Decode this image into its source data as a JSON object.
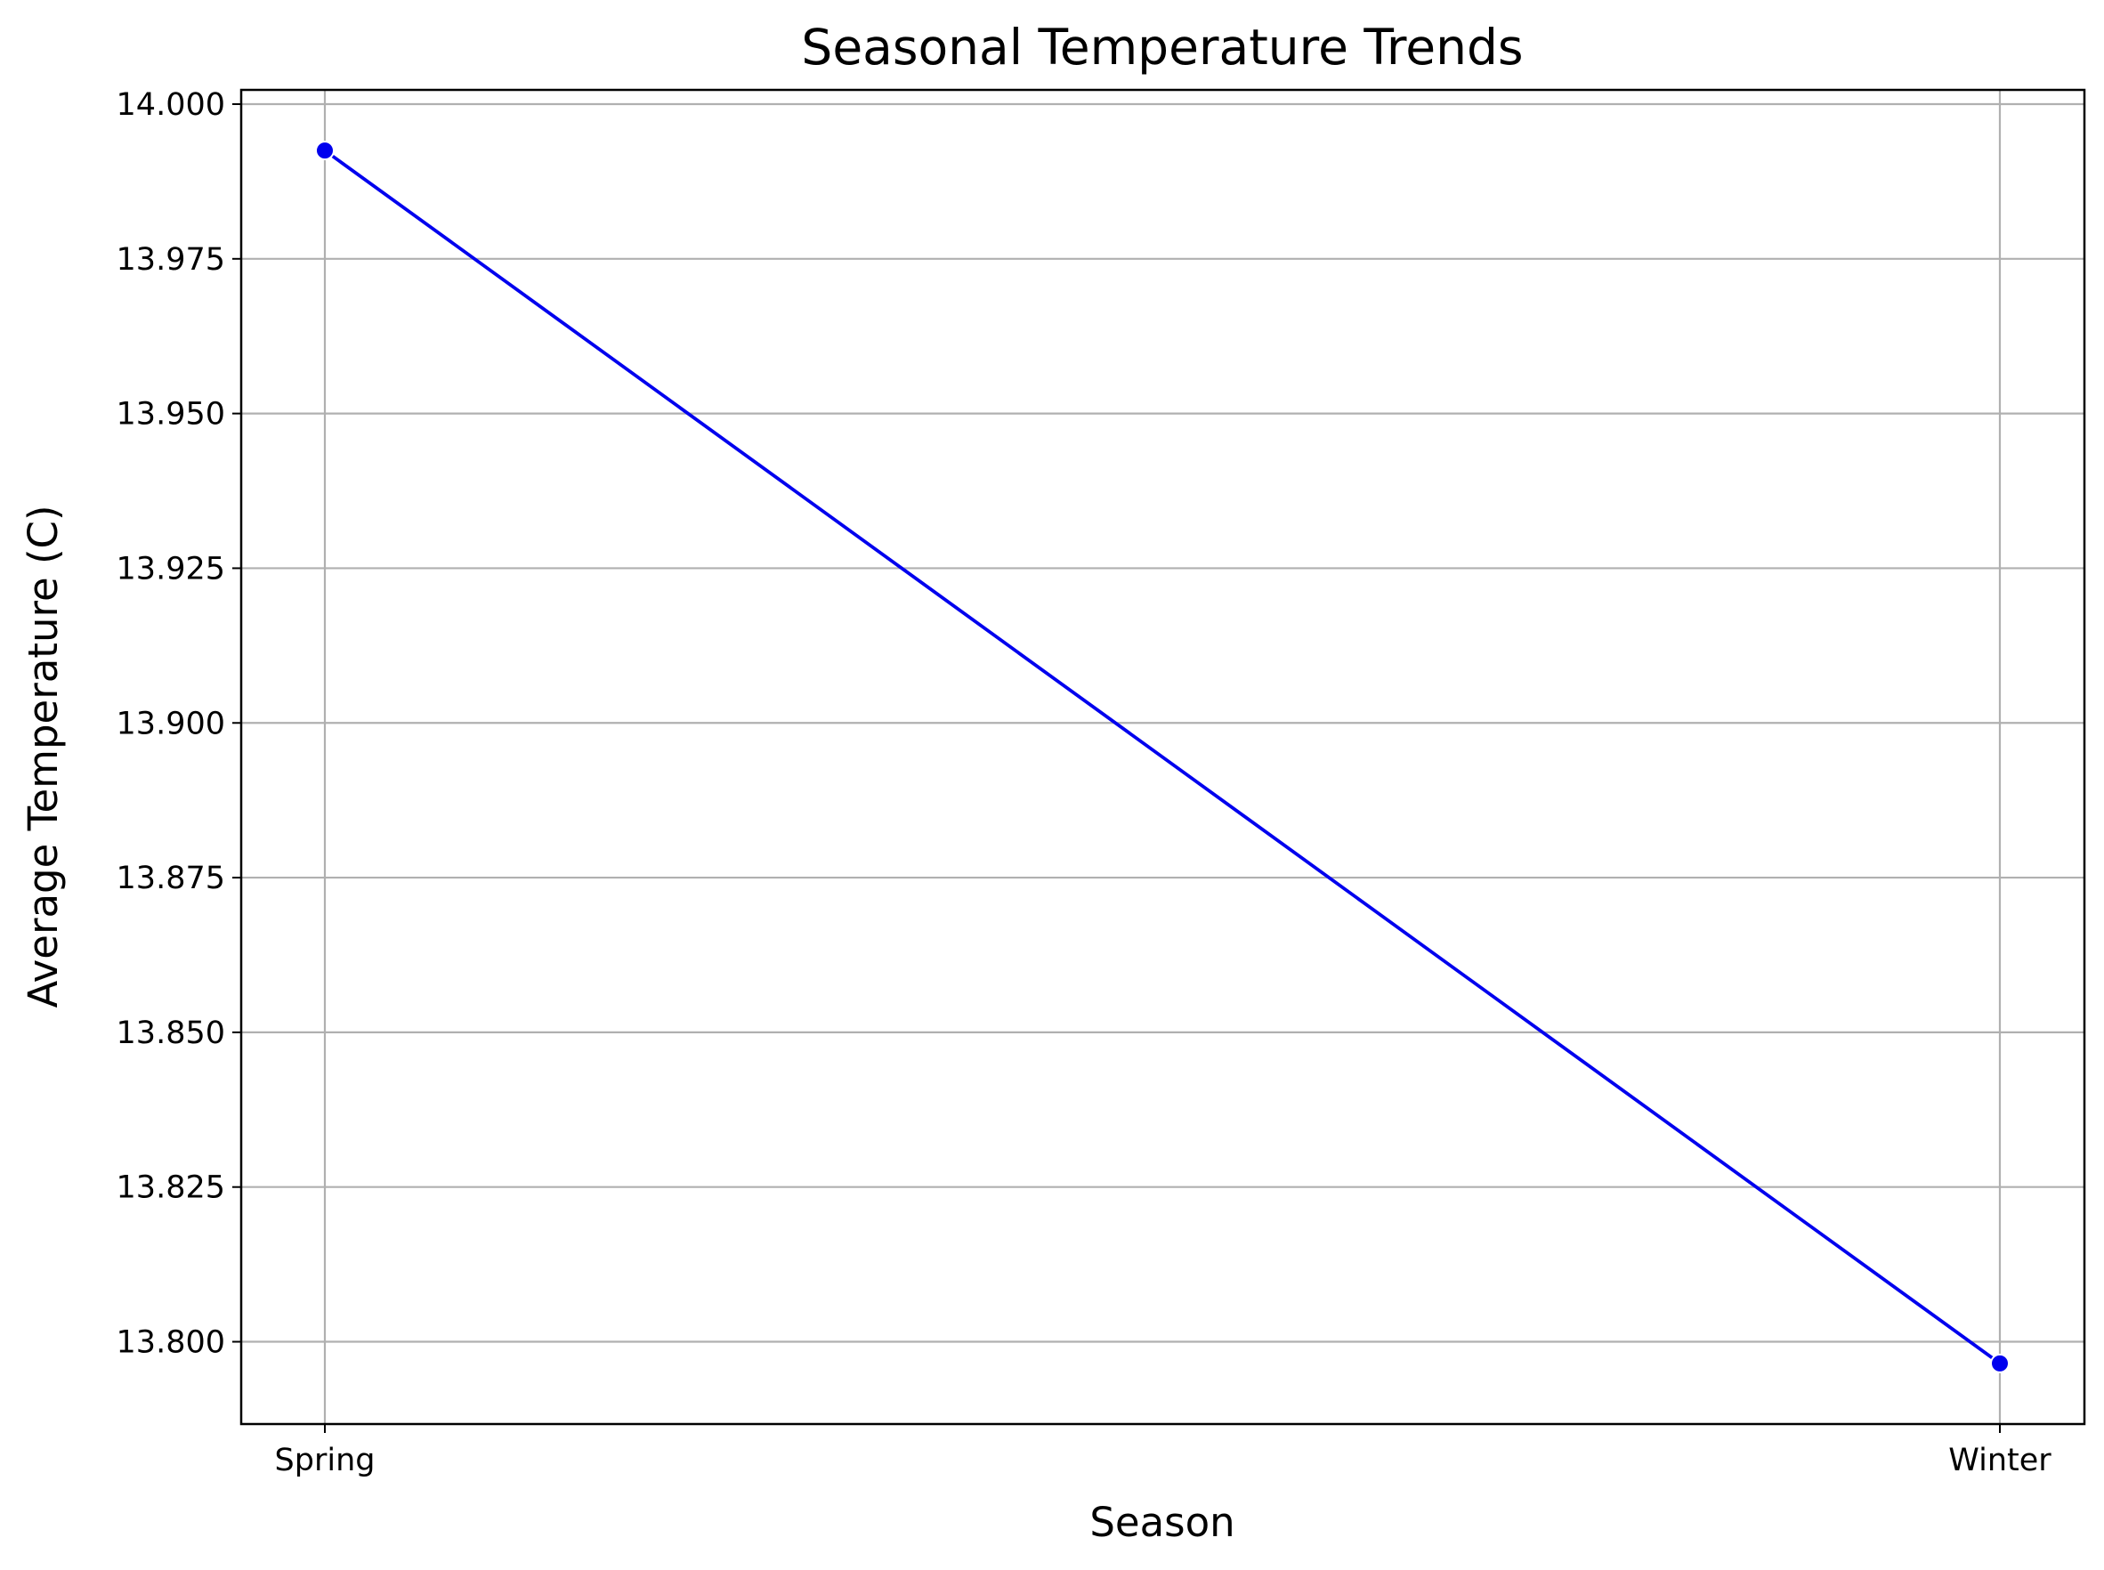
{
  "chart_data": {
    "type": "line",
    "title": "Seasonal Temperature Trends",
    "xlabel": "Season",
    "ylabel": "Average Temperature (C)",
    "categories": [
      "Spring",
      "Winter"
    ],
    "series": [
      {
        "values": [
          13.9925,
          13.7965
        ],
        "color": "#0000ee",
        "marker": "circle"
      }
    ],
    "ylim": [
      13.7867,
      14.0023
    ],
    "yticks": [
      13.8,
      13.825,
      13.85,
      13.875,
      13.9,
      13.925,
      13.95,
      13.975,
      14.0
    ],
    "ytick_labels": [
      "13.800",
      "13.825",
      "13.850",
      "13.875",
      "13.900",
      "13.925",
      "13.950",
      "13.975",
      "14.000"
    ],
    "grid": true
  }
}
